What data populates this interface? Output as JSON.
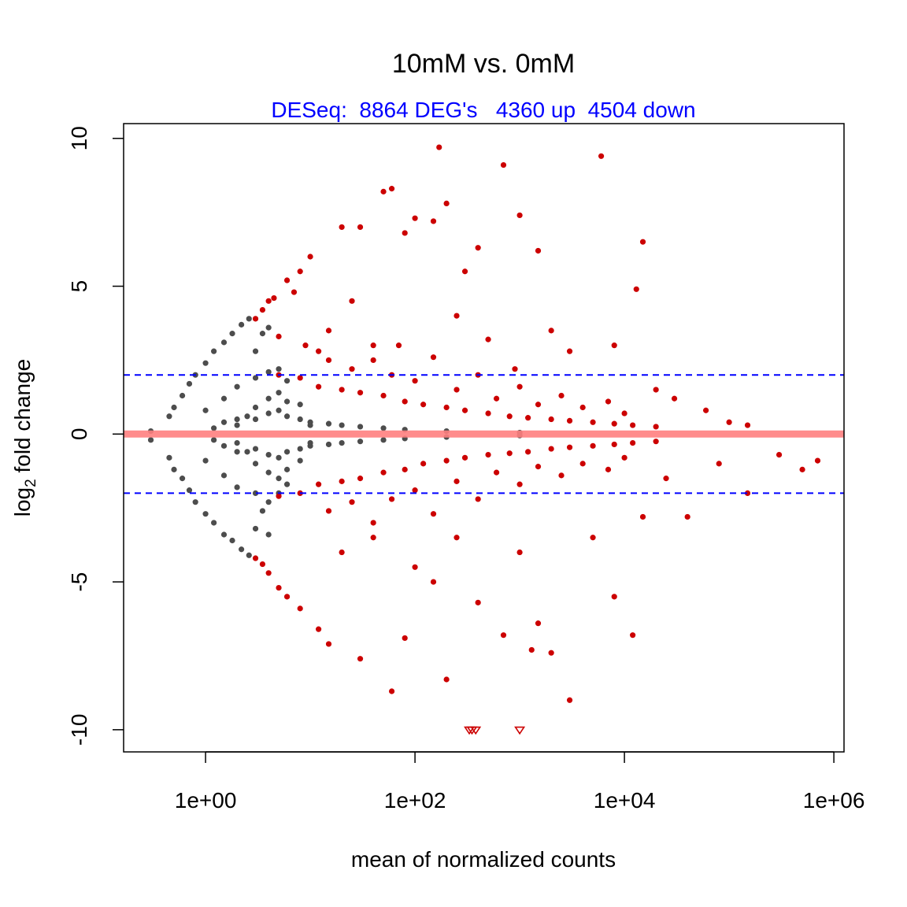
{
  "chart_data": {
    "type": "scatter",
    "title": "10mM vs. 0mM",
    "subtitle": "DESeq:  8864 DEG's   4360 up  4504 down",
    "x_label": "mean of normalized counts",
    "y_label": {
      "base": "log",
      "subscript": "2",
      "rest": " fold change"
    },
    "x_log": true,
    "xlim": [
      0.165,
      1250000
    ],
    "xticks": [
      {
        "value": 1,
        "label": "1e+00"
      },
      {
        "value": 100,
        "label": "1e+02"
      },
      {
        "value": 10000,
        "label": "1e+04"
      },
      {
        "value": 1000000,
        "label": "1e+06"
      }
    ],
    "ylim": [
      -10.75,
      10.5
    ],
    "yticks": [
      10,
      5,
      0,
      -5,
      -10
    ],
    "reference_lines": [
      {
        "value": 0,
        "color": "#ff7f7f",
        "style": "solid"
      },
      {
        "value": 2,
        "color": "#0000ff",
        "style": "dashed"
      },
      {
        "value": -2,
        "color": "#0000ff",
        "style": "dashed"
      }
    ],
    "series": [
      {
        "color": "#4d4d4d",
        "shape": "circle",
        "x": [
          0.3,
          0.3,
          0.45,
          0.45,
          0.5,
          0.5,
          0.6,
          0.6,
          0.7,
          0.7,
          0.8,
          0.8,
          1,
          1,
          1.2,
          1.2,
          1.5,
          1.5,
          1.8,
          1.8,
          2.2,
          2.2,
          2.6,
          2.6,
          3,
          3,
          3.5,
          3.5,
          4,
          4,
          1,
          1,
          1.5,
          1.5,
          2,
          2,
          3,
          3,
          4,
          4,
          5,
          5,
          6,
          6,
          2,
          2,
          3,
          3,
          4,
          4,
          5,
          5,
          6,
          6,
          8,
          8,
          1.2,
          1.5,
          2,
          2.5,
          3,
          4,
          5,
          6,
          8,
          10,
          1.2,
          1.5,
          2,
          2.5,
          3,
          4,
          5,
          6,
          8,
          10,
          10,
          10,
          15,
          15,
          20,
          20,
          30,
          30,
          50,
          50,
          80,
          80,
          200,
          200,
          1000,
          1000
        ],
        "values": [
          -0.2,
          0.1,
          0.6,
          -0.8,
          0.9,
          -1.2,
          1.3,
          -1.5,
          1.7,
          -1.9,
          2.0,
          -2.3,
          2.4,
          -2.7,
          2.8,
          -3.0,
          3.1,
          -3.4,
          3.4,
          -3.6,
          3.7,
          -3.9,
          3.9,
          -4.1,
          2.8,
          -3.2,
          3.4,
          -2.6,
          3.6,
          -3.4,
          0.8,
          -0.9,
          1.2,
          -1.4,
          1.6,
          -1.8,
          1.9,
          -2.0,
          2.1,
          -2.3,
          2.2,
          -2.0,
          1.8,
          -1.7,
          0.5,
          -0.6,
          0.9,
          -1.0,
          1.2,
          -1.3,
          1.4,
          -1.5,
          1.1,
          -1.2,
          1.0,
          -0.9,
          0.2,
          0.4,
          0.3,
          0.6,
          0.5,
          0.7,
          0.8,
          0.6,
          0.5,
          0.3,
          -0.2,
          -0.4,
          -0.3,
          -0.6,
          -0.5,
          -0.7,
          -0.8,
          -0.6,
          -0.5,
          -0.3,
          0.4,
          -0.4,
          0.35,
          -0.35,
          0.3,
          -0.3,
          0.25,
          -0.25,
          0.2,
          -0.2,
          0.15,
          -0.15,
          0.1,
          -0.1,
          0.05,
          -0.05
        ]
      },
      {
        "color": "#cc0000",
        "shape": "circle",
        "x": [
          3,
          3.5,
          4,
          4.5,
          5,
          6,
          7,
          8,
          9,
          10,
          12,
          15,
          20,
          25,
          30,
          40,
          50,
          60,
          70,
          80,
          100,
          150,
          170,
          200,
          250,
          300,
          400,
          500,
          700,
          900,
          1000,
          1500,
          2000,
          3000,
          6000,
          8000,
          13000,
          15000,
          20000,
          30000,
          60000,
          100000,
          150000,
          5,
          8,
          12,
          20,
          30,
          50,
          80,
          120,
          200,
          300,
          500,
          800,
          1200,
          2000,
          3000,
          5000,
          8000,
          12000,
          20000,
          15,
          25,
          40,
          60,
          100,
          150,
          250,
          400,
          600,
          1000,
          1500,
          2500,
          4000,
          7000,
          10000,
          3,
          3.5,
          4,
          5,
          6,
          8,
          12,
          15,
          20,
          30,
          40,
          60,
          80,
          100,
          150,
          200,
          250,
          400,
          700,
          1000,
          1300,
          1500,
          2000,
          3000,
          5000,
          8000,
          12000,
          15000,
          25000,
          40000,
          80000,
          150000,
          300000,
          500000,
          700000,
          5,
          8,
          12,
          20,
          30,
          50,
          80,
          120,
          200,
          300,
          500,
          800,
          1200,
          2000,
          3000,
          5000,
          8000,
          12000,
          20000,
          15,
          25,
          40,
          60,
          100,
          150,
          250,
          400,
          600,
          1000,
          1500,
          2500,
          4000,
          7000,
          10000
        ],
        "values": [
          3.9,
          4.2,
          4.5,
          4.6,
          3.3,
          5.2,
          4.8,
          5.5,
          3.0,
          6.0,
          2.8,
          3.5,
          7.0,
          4.5,
          7.0,
          2.5,
          8.2,
          8.3,
          3.0,
          6.8,
          7.3,
          7.2,
          9.7,
          7.8,
          4.0,
          5.5,
          6.3,
          3.2,
          9.1,
          2.2,
          7.4,
          6.2,
          3.5,
          2.8,
          9.4,
          3.0,
          4.9,
          6.5,
          1.5,
          1.2,
          0.8,
          0.4,
          0.3,
          2.0,
          1.9,
          1.6,
          1.5,
          1.4,
          1.3,
          1.1,
          1.0,
          0.9,
          0.8,
          0.7,
          0.6,
          0.55,
          0.5,
          0.45,
          0.4,
          0.35,
          0.3,
          0.25,
          2.5,
          2.2,
          3.0,
          2.0,
          1.8,
          2.6,
          1.5,
          2.0,
          1.2,
          1.6,
          1.0,
          1.3,
          0.9,
          1.1,
          0.7,
          -4.2,
          -4.4,
          -4.7,
          -5.2,
          -5.5,
          -5.9,
          -6.6,
          -7.1,
          -4.0,
          -7.6,
          -3.0,
          -8.7,
          -6.9,
          -4.5,
          -5.0,
          -8.3,
          -3.5,
          -5.7,
          -6.8,
          -4.0,
          -7.3,
          -6.4,
          -7.4,
          -9.0,
          -3.5,
          -5.5,
          -6.8,
          -2.8,
          -1.5,
          -2.8,
          -1.0,
          -2.0,
          -0.7,
          -1.2,
          -0.9,
          -2.1,
          -2.0,
          -1.7,
          -1.6,
          -1.5,
          -1.3,
          -1.2,
          -1.0,
          -0.9,
          -0.8,
          -0.7,
          -0.65,
          -0.6,
          -0.5,
          -0.45,
          -0.4,
          -0.35,
          -0.3,
          -0.25,
          -2.6,
          -2.3,
          -3.5,
          -2.2,
          -1.9,
          -2.7,
          -1.6,
          -2.2,
          -1.3,
          -1.7,
          -1.1,
          -1.4,
          -1.0,
          -1.2,
          -0.8
        ]
      },
      {
        "color": "#cc0000",
        "shape": "triangle",
        "x": [
          330,
          350,
          380,
          1000
        ],
        "values": [
          -10,
          -10,
          -10,
          -10
        ]
      }
    ]
  }
}
